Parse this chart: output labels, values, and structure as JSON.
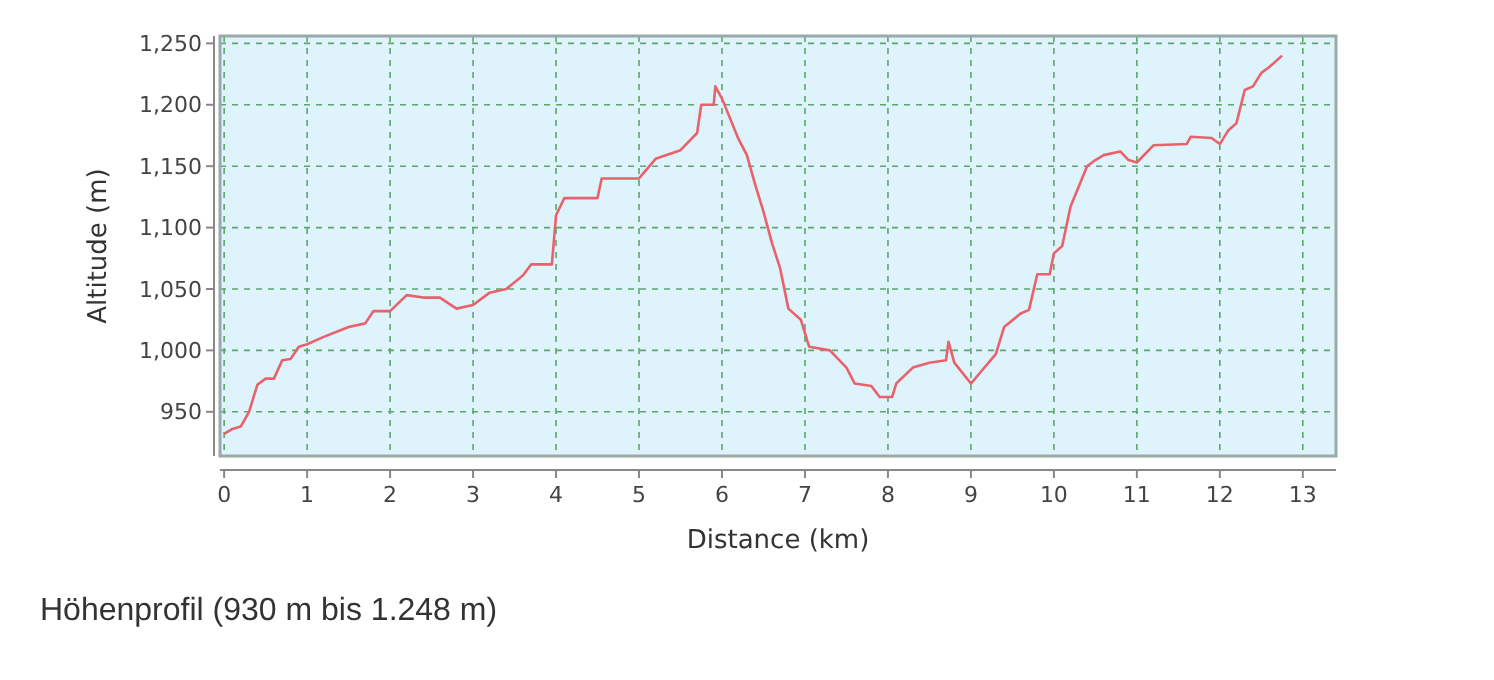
{
  "chart_data": {
    "type": "line",
    "xlabel": "Distance (km)",
    "ylabel": "Altitude (m)",
    "annotations": [
      "Höhenprofil (930 m bis 1.248 m)"
    ],
    "xlim": [
      -0.05,
      13.4
    ],
    "ylim": [
      914,
      1256
    ],
    "xticks": [
      0,
      1,
      2,
      3,
      4,
      5,
      6,
      7,
      8,
      9,
      10,
      11,
      12,
      13
    ],
    "yticks": [
      {
        "value": 950,
        "label": "950"
      },
      {
        "value": 1000,
        "label": "1,000"
      },
      {
        "value": 1050,
        "label": "1,050"
      },
      {
        "value": 1100,
        "label": "1,100"
      },
      {
        "value": 1150,
        "label": "1,150"
      },
      {
        "value": 1200,
        "label": "1,200"
      },
      {
        "value": 1250,
        "label": "1,250"
      }
    ],
    "grid": true,
    "marker": "none",
    "line_style": "solid",
    "series": [
      {
        "color": "#e8626b",
        "x": [
          0,
          0.1,
          0.2,
          0.3,
          0.4,
          0.5,
          0.6,
          0.7,
          0.8,
          0.9,
          1.0,
          1.2,
          1.5,
          1.7,
          1.8,
          2.0,
          2.2,
          2.4,
          2.6,
          2.8,
          3.0,
          3.2,
          3.4,
          3.6,
          3.7,
          3.95,
          4.0,
          4.1,
          4.5,
          4.55,
          5.0,
          5.2,
          5.5,
          5.7,
          5.75,
          5.9,
          5.92,
          6.0,
          6.2,
          6.3,
          6.4,
          6.5,
          6.6,
          6.7,
          6.8,
          6.95,
          7.05,
          7.3,
          7.5,
          7.6,
          7.8,
          7.9,
          8.05,
          8.1,
          8.3,
          8.5,
          8.7,
          8.73,
          8.8,
          9.0,
          9.1,
          9.3,
          9.4,
          9.6,
          9.7,
          9.8,
          9.95,
          10.0,
          10.1,
          10.2,
          10.4,
          10.5,
          10.6,
          10.8,
          10.9,
          11.0,
          11.2,
          11.6,
          11.65,
          11.9,
          12.0,
          12.1,
          12.2,
          12.3,
          12.4,
          12.5,
          12.6,
          12.75
        ],
        "values": [
          932,
          936,
          938,
          950,
          972,
          977,
          977,
          992,
          993,
          1003,
          1005,
          1011,
          1019,
          1022,
          1032,
          1032,
          1045,
          1043,
          1043,
          1034,
          1037,
          1047,
          1050,
          1061,
          1070,
          1070,
          1110,
          1124,
          1124,
          1140,
          1140,
          1156,
          1163,
          1177,
          1200,
          1200,
          1215,
          1205,
          1172,
          1159,
          1135,
          1113,
          1088,
          1067,
          1034,
          1025,
          1003,
          1000,
          986,
          973,
          971,
          962,
          962,
          973,
          986,
          990,
          992,
          1007,
          990,
          973,
          981,
          997,
          1019,
          1030,
          1033,
          1062,
          1062,
          1079,
          1085,
          1117,
          1150,
          1155,
          1159,
          1162,
          1155,
          1153,
          1167,
          1168,
          1174,
          1173,
          1168,
          1179,
          1185,
          1212,
          1215,
          1226,
          1231,
          1240
        ]
      }
    ]
  }
}
